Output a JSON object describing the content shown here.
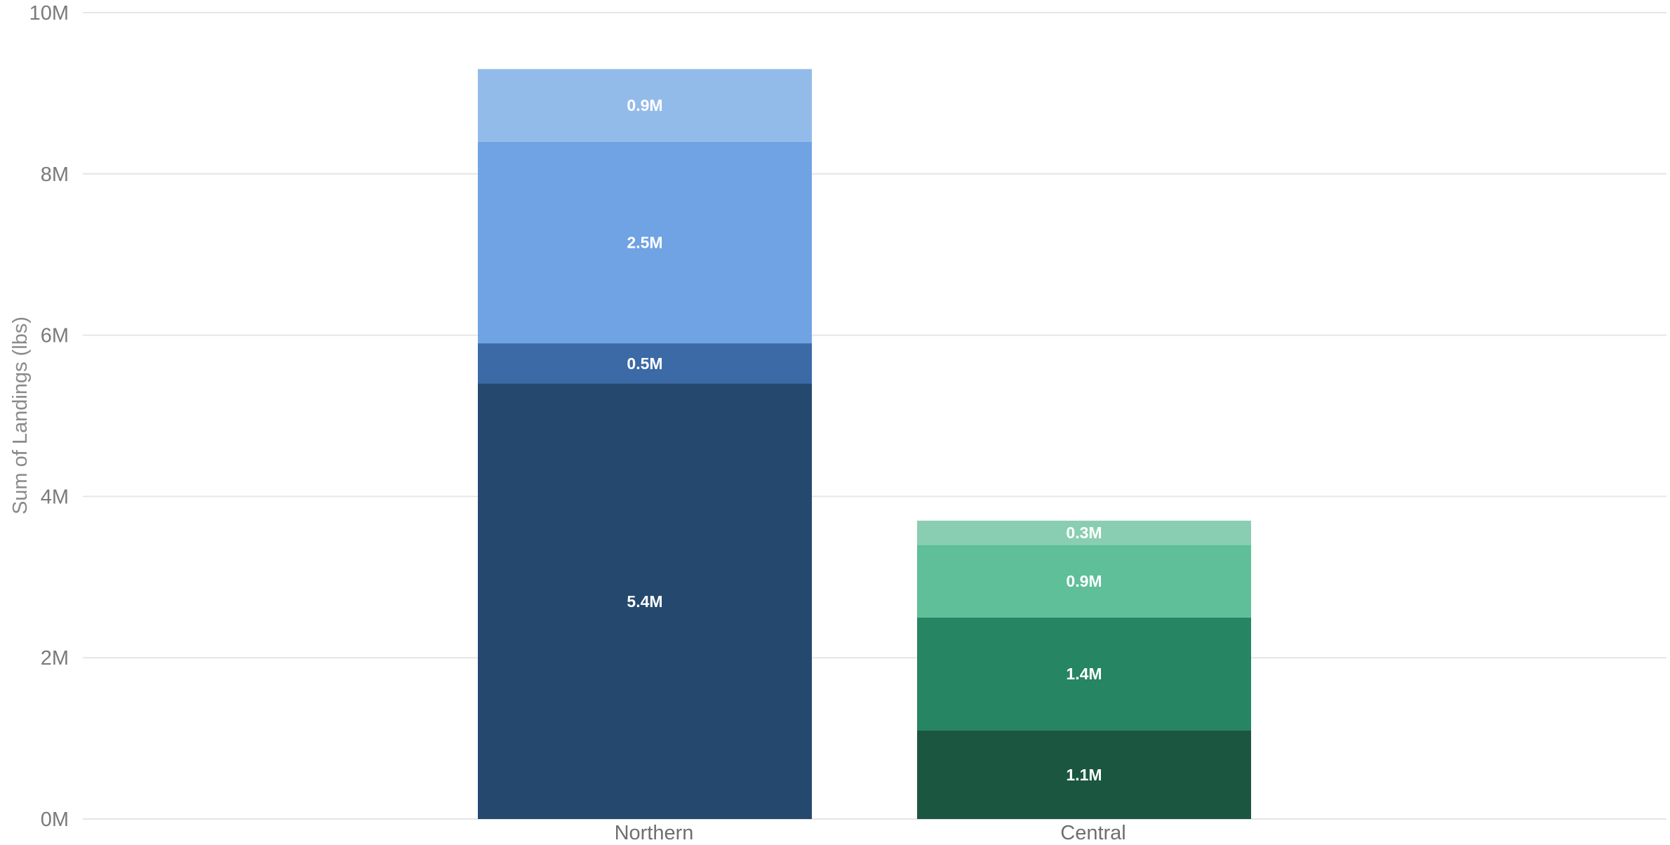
{
  "chart_data": {
    "type": "bar",
    "stacked": true,
    "title": "",
    "xlabel": "",
    "ylabel": "Sum of Landings (lbs)",
    "ylim": [
      0,
      10000000
    ],
    "yticks": [
      {
        "value": 0,
        "label": "0M"
      },
      {
        "value": 2000000,
        "label": "2M"
      },
      {
        "value": 4000000,
        "label": "4M"
      },
      {
        "value": 6000000,
        "label": "6M"
      },
      {
        "value": 8000000,
        "label": "8M"
      },
      {
        "value": 10000000,
        "label": "10M"
      }
    ],
    "grid": true,
    "legend": "none",
    "categories": [
      {
        "name": "Northern",
        "segments": [
          {
            "value": 5.4,
            "label": "5.4M",
            "color": "#25486e"
          },
          {
            "value": 0.5,
            "label": "0.5M",
            "color": "#3b6aa6"
          },
          {
            "value": 2.5,
            "label": "2.5M",
            "color": "#6fa3e3"
          },
          {
            "value": 0.9,
            "label": "0.9M",
            "color": "#93bbea"
          }
        ]
      },
      {
        "name": "Central",
        "segments": [
          {
            "value": 1.1,
            "label": "1.1M",
            "color": "#1b5640"
          },
          {
            "value": 1.4,
            "label": "1.4M",
            "color": "#268563"
          },
          {
            "value": 0.9,
            "label": "0.9M",
            "color": "#5ebf99"
          },
          {
            "value": 0.3,
            "label": "0.3M",
            "color": "#89ceb3"
          }
        ]
      }
    ],
    "value_unit_multiplier": 1000000
  }
}
